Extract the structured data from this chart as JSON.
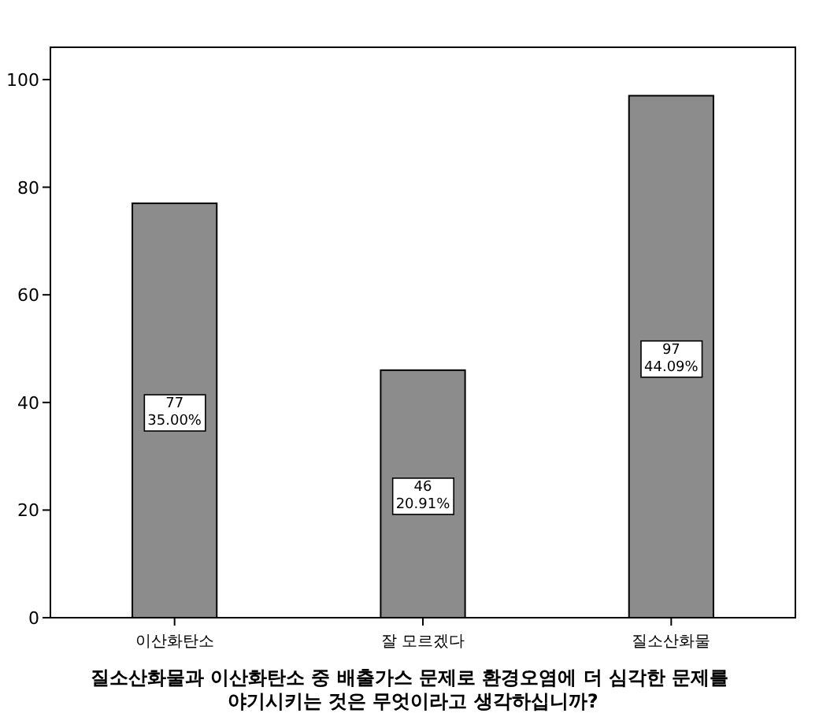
{
  "chart_data": {
    "type": "bar",
    "xlabel": "질소산화물과 이산화탄소 중 배출가스 문제로 환경오염에 더 심각한 문제를 야기시키는 것은 무엇이라고 생각하십니까?",
    "categories": [
      "이산화탄소",
      "잘 모르겠다",
      "질소산화물"
    ],
    "values": [
      77,
      46,
      97
    ],
    "value_labels": [
      "77 35.00%",
      "46 20.91%",
      "97 44.09%"
    ],
    "color": "#8c8c8c",
    "ylim": [
      0,
      106
    ],
    "yticks": [
      0,
      20,
      40,
      60,
      80,
      100
    ],
    "grid": false
  }
}
